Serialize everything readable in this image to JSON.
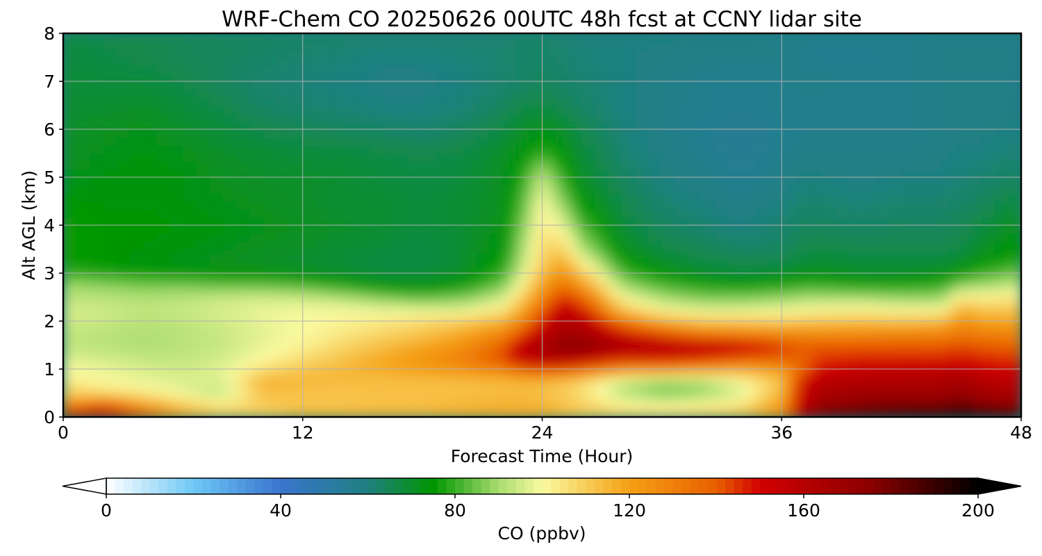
{
  "chart_data": {
    "type": "heatmap",
    "title": "WRF-Chem CO  20250626 00UTC 48h fcst at CCNY lidar site",
    "xlabel": "Forecast Time (Hour)",
    "ylabel": "Alt AGL (km)",
    "xlim": [
      0,
      48
    ],
    "ylim": [
      0,
      8
    ],
    "x_ticks": [
      0,
      12,
      24,
      36,
      48
    ],
    "y_ticks": [
      0,
      1,
      2,
      3,
      4,
      5,
      6,
      7,
      8
    ],
    "grid": true,
    "x": [
      0,
      2,
      4,
      6,
      8,
      10,
      12,
      14,
      16,
      18,
      20,
      22,
      23,
      24,
      25,
      26,
      28,
      30,
      32,
      34,
      36,
      37,
      38,
      40,
      42,
      44,
      45,
      46,
      48
    ],
    "y": [
      0,
      0.25,
      0.5,
      0.75,
      1,
      1.25,
      1.5,
      1.75,
      2,
      2.25,
      2.5,
      2.75,
      3,
      3.25,
      3.5,
      4,
      4.5,
      5,
      5.5,
      6,
      6.5,
      7,
      7.5,
      8
    ],
    "z": [
      [
        160,
        165,
        145,
        118,
        112,
        110,
        116,
        116,
        115,
        116,
        117,
        118,
        118,
        118,
        115,
        112,
        112,
        110,
        112,
        115,
        125,
        165,
        185,
        190,
        195,
        198,
        202,
        198,
        196
      ],
      [
        126,
        140,
        122,
        112,
        105,
        110,
        112,
        112,
        113,
        113,
        115,
        116,
        116,
        115,
        113,
        110,
        102,
        100,
        102,
        105,
        122,
        158,
        170,
        176,
        178,
        178,
        182,
        176,
        172
      ],
      [
        110,
        108,
        104,
        98,
        92,
        113,
        112,
        112,
        113,
        113,
        113,
        114,
        114,
        113,
        110,
        106,
        92,
        86,
        88,
        96,
        116,
        152,
        164,
        168,
        168,
        168,
        172,
        166,
        162
      ],
      [
        104,
        100,
        98,
        96,
        96,
        117,
        115,
        114,
        113,
        113,
        113,
        114,
        115,
        114,
        112,
        108,
        94,
        88,
        90,
        100,
        112,
        150,
        160,
        162,
        163,
        164,
        166,
        162,
        158
      ],
      [
        100,
        98,
        96,
        95,
        97,
        106,
        112,
        115,
        118,
        121,
        125,
        130,
        138,
        142,
        140,
        136,
        126,
        126,
        122,
        118,
        122,
        136,
        150,
        155,
        156,
        157,
        158,
        152,
        150
      ],
      [
        96,
        95,
        93,
        93,
        95,
        100,
        106,
        112,
        118,
        124,
        130,
        144,
        158,
        162,
        164,
        160,
        150,
        152,
        148,
        142,
        140,
        140,
        144,
        146,
        146,
        146,
        148,
        146,
        144
      ],
      [
        93,
        92,
        91,
        92,
        94,
        98,
        102,
        108,
        113,
        118,
        124,
        138,
        156,
        164,
        174,
        176,
        166,
        160,
        158,
        154,
        144,
        140,
        140,
        140,
        140,
        140,
        142,
        140,
        138
      ],
      [
        93,
        92,
        91,
        92,
        94,
        97,
        100,
        104,
        108,
        112,
        118,
        128,
        142,
        158,
        166,
        166,
        150,
        140,
        130,
        128,
        126,
        126,
        126,
        126,
        128,
        128,
        132,
        130,
        128
      ],
      [
        95,
        94,
        92,
        93,
        95,
        98,
        100,
        102,
        104,
        107,
        110,
        116,
        128,
        148,
        162,
        160,
        132,
        118,
        112,
        111,
        110,
        111,
        112,
        113,
        112,
        114,
        125,
        120,
        118
      ],
      [
        96,
        95,
        93,
        94,
        96,
        98,
        99,
        99,
        98,
        97,
        96,
        104,
        118,
        138,
        156,
        150,
        112,
        100,
        96,
        96,
        98,
        100,
        101,
        102,
        100,
        100,
        116,
        112,
        112
      ],
      [
        92,
        92,
        91,
        92,
        94,
        95,
        94,
        91,
        86,
        83,
        86,
        94,
        110,
        128,
        146,
        138,
        100,
        90,
        86,
        86,
        88,
        90,
        90,
        90,
        88,
        88,
        104,
        102,
        104
      ],
      [
        90,
        88,
        86,
        86,
        84,
        84,
        82,
        78,
        74,
        72,
        76,
        86,
        102,
        120,
        134,
        124,
        90,
        82,
        78,
        76,
        78,
        80,
        80,
        78,
        78,
        80,
        88,
        90,
        94
      ],
      [
        80,
        78,
        76,
        75,
        74,
        74,
        72,
        70,
        68,
        68,
        70,
        80,
        96,
        114,
        124,
        112,
        82,
        74,
        70,
        68,
        70,
        72,
        72,
        70,
        70,
        72,
        76,
        80,
        86
      ],
      [
        76,
        75,
        73,
        72,
        71,
        70,
        69,
        68,
        67,
        67,
        69,
        76,
        92,
        110,
        118,
        102,
        76,
        70,
        67,
        66,
        66,
        68,
        69,
        68,
        68,
        68,
        70,
        74,
        79
      ],
      [
        76,
        75,
        74,
        73,
        72,
        71,
        70,
        69,
        68,
        67,
        69,
        74,
        90,
        108,
        110,
        92,
        72,
        67,
        65,
        63,
        64,
        66,
        67,
        66,
        66,
        66,
        67,
        70,
        76
      ],
      [
        76,
        75,
        75,
        74,
        73,
        72,
        71,
        70,
        69,
        68,
        69,
        72,
        86,
        104,
        98,
        82,
        68,
        64,
        62,
        60,
        62,
        64,
        64,
        63,
        64,
        64,
        65,
        67,
        72
      ],
      [
        75,
        74,
        74,
        73,
        72,
        71,
        70,
        69,
        69,
        68,
        69,
        71,
        82,
        100,
        88,
        74,
        66,
        62,
        60,
        58,
        60,
        62,
        62,
        61,
        62,
        62,
        63,
        64,
        68
      ],
      [
        72,
        73,
        74,
        73,
        71,
        70,
        70,
        69,
        68,
        67,
        68,
        71,
        78,
        94,
        80,
        70,
        64,
        60,
        58,
        56,
        58,
        60,
        60,
        59,
        60,
        60,
        61,
        62,
        64
      ],
      [
        70,
        72,
        73,
        72,
        70,
        69,
        68,
        68,
        67,
        66,
        67,
        70,
        74,
        80,
        74,
        68,
        62,
        59,
        57,
        55,
        57,
        58,
        58,
        58,
        58,
        59,
        60,
        60,
        62
      ],
      [
        70,
        71,
        72,
        70,
        68,
        66,
        65,
        64,
        63,
        62,
        64,
        67,
        70,
        72,
        70,
        66,
        61,
        58,
        56,
        55,
        56,
        57,
        57,
        57,
        57,
        58,
        59,
        59,
        60
      ],
      [
        69,
        69,
        70,
        68,
        66,
        63,
        62,
        61,
        60,
        60,
        61,
        64,
        66,
        67,
        65,
        63,
        60,
        58,
        57,
        56,
        57,
        57,
        57,
        57,
        57,
        58,
        58,
        58,
        59
      ],
      [
        69,
        68,
        68,
        66,
        64,
        62,
        61,
        60,
        59,
        59,
        60,
        62,
        63,
        64,
        63,
        62,
        60,
        58,
        57,
        56,
        57,
        58,
        58,
        57,
        57,
        58,
        58,
        58,
        58
      ],
      [
        68,
        67,
        66,
        65,
        64,
        63,
        62,
        61,
        60,
        60,
        61,
        62,
        63,
        63,
        62,
        61,
        60,
        59,
        58,
        58,
        58,
        57,
        56,
        56,
        57,
        58,
        58,
        58,
        58
      ],
      [
        67,
        66,
        66,
        65,
        64,
        64,
        63,
        63,
        62,
        62,
        62,
        62,
        63,
        63,
        62,
        61,
        60,
        60,
        59,
        59,
        58,
        58,
        57,
        57,
        57,
        58,
        58,
        58,
        58
      ]
    ],
    "colorbar": {
      "label": "CO  (ppbv)",
      "vmin": 0,
      "vmax": 200,
      "ticks": [
        0,
        40,
        80,
        120,
        160,
        200
      ],
      "extend": "both",
      "stops": [
        {
          "value": 0,
          "color": "#ffffff"
        },
        {
          "value": 20,
          "color": "#6ec8f5"
        },
        {
          "value": 40,
          "color": "#3a74cf"
        },
        {
          "value": 60,
          "color": "#1f8080"
        },
        {
          "value": 75,
          "color": "#009600"
        },
        {
          "value": 90,
          "color": "#a8dc6e"
        },
        {
          "value": 100,
          "color": "#fafaa0"
        },
        {
          "value": 120,
          "color": "#f5a014"
        },
        {
          "value": 140,
          "color": "#e85f00"
        },
        {
          "value": 150,
          "color": "#d20000"
        },
        {
          "value": 175,
          "color": "#8c0000"
        },
        {
          "value": 200,
          "color": "#000000"
        }
      ]
    }
  }
}
